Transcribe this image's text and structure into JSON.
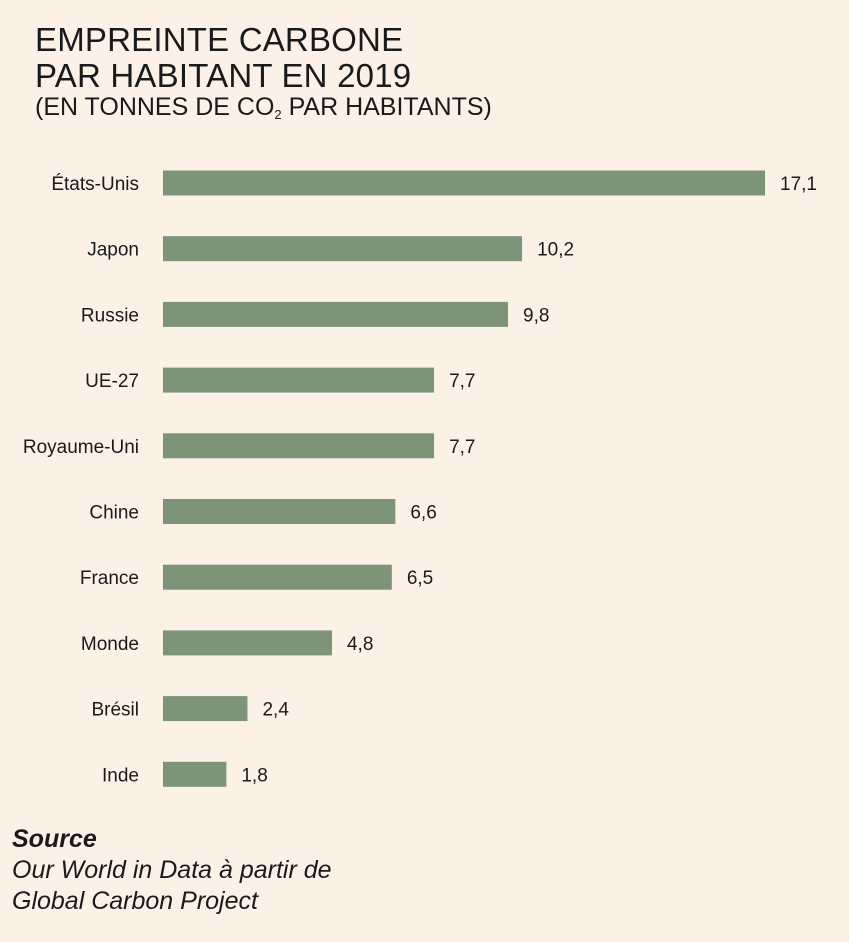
{
  "title": {
    "line1": "EMPREINTE CARBONE",
    "line2": "PAR HABITANT EN 2019",
    "sub_prefix": "(EN TONNES DE CO",
    "sub_subscript": "2",
    "sub_suffix": " PAR HABITANTS)"
  },
  "source": {
    "heading": "Source",
    "line1": "Our World in Data à partir de",
    "line2": "Global Carbon Project"
  },
  "colors": {
    "bar": "#7d9479",
    "background": "#fcf1e7",
    "text": "#1a1a1a"
  },
  "chart_data": {
    "type": "bar",
    "orientation": "horizontal",
    "title": "EMPREINTE CARBONE PAR HABITANT EN 2019",
    "ylabel": "",
    "xlabel": "",
    "unit": "tonnes de CO2 par habitant",
    "xlim": [
      0,
      17.1
    ],
    "categories": [
      "États-Unis",
      "Japon",
      "Russie",
      "UE-27",
      "Royaume-Uni",
      "Chine",
      "France",
      "Monde",
      "Brésil",
      "Inde"
    ],
    "values": [
      17.1,
      10.2,
      9.8,
      7.7,
      7.7,
      6.6,
      6.5,
      4.8,
      2.4,
      1.8
    ],
    "value_labels": [
      "17,1",
      "10,2",
      "9,8",
      "7,7",
      "7,7",
      "6,6",
      "6,5",
      "4,8",
      "2,4",
      "1,8"
    ],
    "grid": false
  }
}
